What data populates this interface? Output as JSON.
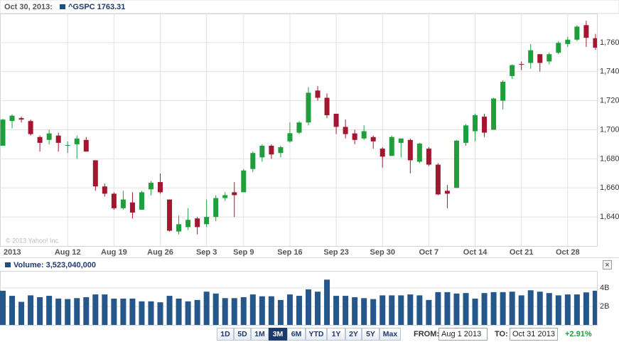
{
  "header": {
    "date": "Oct 30, 2013:",
    "quote": "^GSPC 1763.31"
  },
  "volume_header": "Volume: 3,523,040,000",
  "copyright": "© 2013 Yahoo! Inc.",
  "controls": {
    "ranges": [
      "1D",
      "5D",
      "1M",
      "3M",
      "6M",
      "YTD",
      "1Y",
      "2Y",
      "5Y",
      "Max"
    ],
    "selected": "3M",
    "from_label": "FROM:",
    "from": "Aug 1 2013",
    "to_label": "TO:",
    "to": "Oct 31 2013",
    "change": "+2.91%"
  },
  "chart_data": [
    {
      "type": "candlestick",
      "categories": [
        "2013",
        null,
        null,
        null,
        null,
        null,
        null,
        "Aug 12",
        null,
        null,
        null,
        null,
        "Aug 19",
        null,
        null,
        null,
        null,
        "Aug 26",
        null,
        null,
        null,
        null,
        "Sep 3",
        null,
        null,
        null,
        "Sep 9",
        null,
        null,
        null,
        null,
        "Sep 16",
        null,
        null,
        null,
        null,
        "Sep 23",
        null,
        null,
        null,
        null,
        "Sep 30",
        null,
        null,
        null,
        null,
        "Oct 7",
        null,
        null,
        null,
        null,
        "Oct 14",
        null,
        null,
        null,
        null,
        "Oct 21",
        null,
        null,
        null,
        null,
        "Oct 28",
        null,
        null,
        null
      ],
      "open": [
        1689,
        1706,
        1708,
        1706,
        1695,
        1693,
        1696,
        1689,
        1690,
        1693,
        1679,
        1661,
        1656,
        1646,
        1650,
        1645,
        1659,
        1664,
        1652,
        1630,
        1633,
        1639,
        1635,
        1640,
        1653,
        1657,
        1657,
        1673,
        1681,
        1689,
        1684,
        1692,
        1698,
        1705,
        1727,
        1722,
        1711,
        1702,
        1697.5,
        1694,
        1695,
        1687,
        1682,
        1691,
        1693,
        1678,
        1687,
        1676,
        1658,
        1660,
        1691,
        1699,
        1709,
        1700,
        1720,
        1737,
        1745.2,
        1746,
        1752,
        1747,
        1753,
        1759,
        1762,
        1772,
        1763
      ],
      "high": [
        1707.5,
        1710.5,
        1709,
        1707,
        1696,
        1700,
        1698,
        1692,
        1696,
        1695,
        1679,
        1663,
        1657,
        1658,
        1657,
        1658,
        1664.8,
        1670,
        1652,
        1641,
        1646,
        1640,
        1652,
        1655,
        1657,
        1664,
        1673,
        1685,
        1690,
        1690,
        1689,
        1705,
        1706,
        1729.4,
        1730,
        1725,
        1711,
        1707,
        1700,
        1703,
        1696,
        1688,
        1696,
        1694,
        1694,
        1691,
        1688,
        1677,
        1662,
        1693,
        1704,
        1711,
        1711,
        1722,
        1734,
        1745,
        1747,
        1759,
        1752,
        1753,
        1761,
        1764,
        1772,
        1775,
        1766
      ],
      "low": [
        1689,
        1701,
        1705,
        1696,
        1685,
        1690,
        1685,
        1684,
        1680,
        1685,
        1658,
        1654,
        1645,
        1645,
        1639,
        1645,
        1654.8,
        1656,
        1630,
        1628,
        1631,
        1628,
        1633,
        1637,
        1651,
        1640,
        1657,
        1671,
        1678,
        1680,
        1681,
        1691,
        1697,
        1703,
        1720,
        1708,
        1697,
        1694,
        1690,
        1693,
        1687,
        1674,
        1682,
        1681,
        1670,
        1677,
        1675,
        1655,
        1646,
        1660,
        1689,
        1692,
        1695,
        1700,
        1714,
        1735,
        1741,
        1742,
        1740,
        1745,
        1752,
        1757,
        1761,
        1757,
        1755
      ],
      "close": [
        1707,
        1709.7,
        1707,
        1697,
        1691,
        1697.5,
        1691,
        1689.5,
        1694,
        1685,
        1661,
        1656,
        1646,
        1652,
        1643,
        1657,
        1663.5,
        1657,
        1630.5,
        1635,
        1638,
        1633,
        1640,
        1653,
        1655,
        1655,
        1672,
        1684,
        1689,
        1683,
        1688,
        1697.6,
        1705,
        1725.5,
        1722,
        1710,
        1702,
        1697,
        1693,
        1699,
        1692,
        1681.5,
        1695,
        1694,
        1679,
        1690.5,
        1676,
        1655.5,
        1656,
        1692.5,
        1703,
        1710,
        1698,
        1721.5,
        1733,
        1744.5,
        1744.7,
        1754.7,
        1746,
        1752,
        1759.8,
        1762,
        1771,
        1763.31,
        1756.5
      ],
      "up_color": "#1f9e3c",
      "down_color": "#a3162f",
      "ylim": [
        1620,
        1780
      ],
      "yticks": [
        {
          "value": 1640,
          "label": "1,640"
        },
        {
          "value": 1660,
          "label": "1,660"
        },
        {
          "value": 1680,
          "label": "1,680"
        },
        {
          "value": 1700,
          "label": "1,700"
        },
        {
          "value": 1720,
          "label": "1,720"
        },
        {
          "value": 1740,
          "label": "1,740"
        },
        {
          "value": 1760,
          "label": "1,760"
        }
      ],
      "grid": true
    },
    {
      "type": "bar",
      "values": [
        3700000000,
        3150000000,
        2500000000,
        3200000000,
        3000000000,
        3150000000,
        2850000000,
        2800000000,
        2900000000,
        3000000000,
        3300000000,
        3300000000,
        2850000000,
        2850000000,
        2850000000,
        2550000000,
        2550000000,
        2450000000,
        3150000000,
        2850000000,
        2550000000,
        2700000000,
        3600000000,
        3400000000,
        2900000000,
        2900000000,
        3000000000,
        3300000000,
        3100000000,
        3100000000,
        2700000000,
        3300000000,
        3150000000,
        3850000000,
        3600000000,
        4900000000,
        3150000000,
        3150000000,
        3000000000,
        2900000000,
        2800000000,
        3200000000,
        3200000000,
        3200000000,
        3300000000,
        3200000000,
        2700000000,
        3550000000,
        3550000000,
        3400000000,
        3450000000,
        2850000000,
        3450000000,
        3550000000,
        3550000000,
        3600000000,
        3200000000,
        3750000000,
        3600000000,
        3450000000,
        3200000000,
        3300000000,
        3300000000,
        3523040000,
        3700000000
      ],
      "color": "#25578a",
      "ylim": [
        0,
        6000000000
      ],
      "yticks": [
        {
          "value": 2000000000,
          "label": "2B"
        },
        {
          "value": 4000000000,
          "label": "4B"
        }
      ],
      "grid": true
    }
  ]
}
